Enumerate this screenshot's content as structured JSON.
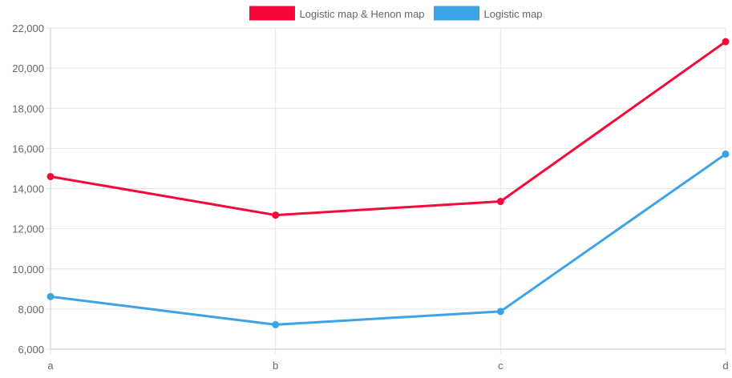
{
  "chart_data": {
    "type": "line",
    "categories": [
      "a",
      "b",
      "c",
      "d"
    ],
    "series": [
      {
        "name": "Logistic map & Henon map",
        "color": "#f5093a",
        "values": [
          14600,
          12680,
          13360,
          21320
        ]
      },
      {
        "name": "Logistic map",
        "color": "#3ca3e5",
        "values": [
          8620,
          7220,
          7880,
          15720
        ]
      }
    ],
    "title": "",
    "xlabel": "",
    "ylabel": "",
    "ylim": [
      6000,
      22000
    ],
    "yticks": [
      "6,000",
      "8,000",
      "10,000",
      "12,000",
      "14,000",
      "16,000",
      "18,000",
      "20,000",
      "22,000"
    ],
    "grid": true,
    "legend": "top-center"
  }
}
